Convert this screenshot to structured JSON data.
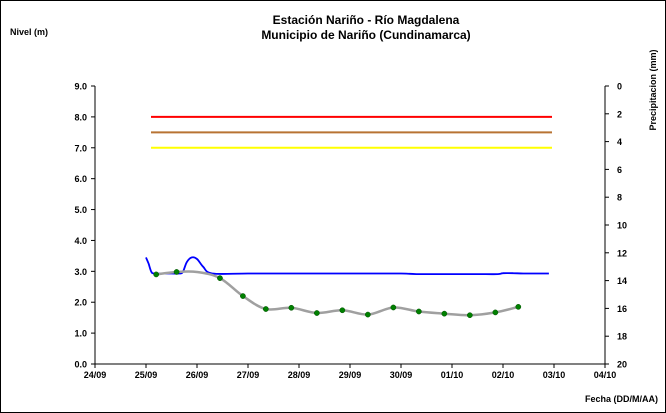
{
  "chart_data": {
    "type": "line",
    "title": "Estación Nariño  - Río Magdalena",
    "subtitle": "Municipio de Nariño (Cundinamarca)",
    "ylabel": "Nivel (m)",
    "y2label": "Precipitacion (mm)",
    "xlabel": "Fecha (DD/M/AA)",
    "ylim": [
      0,
      9
    ],
    "y2lim": [
      20,
      0
    ],
    "x_ticks": [
      "24/09",
      "25/09",
      "26/09",
      "27/09",
      "28/09",
      "29/09",
      "30/09",
      "01/10",
      "02/10",
      "03/10",
      "04/10"
    ],
    "y_ticks": [
      "0.0",
      "1.0",
      "2.0",
      "3.0",
      "4.0",
      "5.0",
      "6.0",
      "7.0",
      "8.0",
      "9.0"
    ],
    "y2_ticks": [
      "20",
      "18",
      "16",
      "14",
      "12",
      "10",
      "8",
      "6",
      "4",
      "2",
      "0"
    ],
    "grid": false,
    "threshold_lines": [
      {
        "y": 8.0,
        "color": "#ff0000"
      },
      {
        "y": 7.5,
        "color": "#b87333"
      },
      {
        "y": 7.0,
        "color": "#ffff00"
      }
    ],
    "series": [
      {
        "color": "#0000ff",
        "axis": "left",
        "points": [
          [
            1.0,
            3.45
          ],
          [
            1.05,
            3.25
          ],
          [
            1.1,
            3.0
          ],
          [
            1.15,
            2.93
          ],
          [
            1.3,
            2.93
          ],
          [
            1.5,
            2.93
          ],
          [
            1.65,
            2.93
          ],
          [
            1.72,
            2.97
          ],
          [
            1.8,
            3.3
          ],
          [
            1.9,
            3.45
          ],
          [
            2.0,
            3.4
          ],
          [
            2.12,
            3.15
          ],
          [
            2.3,
            2.93
          ],
          [
            3.0,
            2.93
          ],
          [
            4.0,
            2.93
          ],
          [
            5.0,
            2.93
          ],
          [
            6.0,
            2.93
          ],
          [
            6.3,
            2.91
          ],
          [
            7.0,
            2.91
          ],
          [
            7.5,
            2.91
          ],
          [
            7.9,
            2.91
          ],
          [
            8.0,
            2.94
          ],
          [
            8.2,
            2.94
          ],
          [
            8.4,
            2.93
          ],
          [
            8.9,
            2.93
          ]
        ]
      },
      {
        "color": "#a0a0a0",
        "axis": "left",
        "points": [
          [
            1.2,
            2.9
          ],
          [
            1.6,
            2.98
          ],
          [
            2.0,
            2.98
          ],
          [
            2.45,
            2.78
          ],
          [
            2.9,
            2.2
          ],
          [
            3.35,
            1.78
          ],
          [
            3.85,
            1.82
          ],
          [
            4.35,
            1.65
          ],
          [
            4.85,
            1.74
          ],
          [
            5.35,
            1.6
          ],
          [
            5.85,
            1.83
          ],
          [
            6.35,
            1.7
          ],
          [
            6.85,
            1.63
          ],
          [
            7.35,
            1.58
          ],
          [
            7.85,
            1.67
          ],
          [
            8.3,
            1.85
          ]
        ]
      },
      {
        "color": "#008000",
        "axis": "left",
        "style": "markers",
        "points": [
          [
            1.2,
            2.9
          ],
          [
            1.6,
            2.98
          ],
          [
            2.45,
            2.78
          ],
          [
            2.9,
            2.2
          ],
          [
            3.35,
            1.78
          ],
          [
            3.85,
            1.82
          ],
          [
            4.35,
            1.65
          ],
          [
            4.85,
            1.74
          ],
          [
            5.35,
            1.6
          ],
          [
            5.85,
            1.83
          ],
          [
            6.35,
            1.7
          ],
          [
            6.85,
            1.63
          ],
          [
            7.35,
            1.58
          ],
          [
            7.85,
            1.67
          ],
          [
            8.3,
            1.85
          ]
        ]
      }
    ]
  }
}
